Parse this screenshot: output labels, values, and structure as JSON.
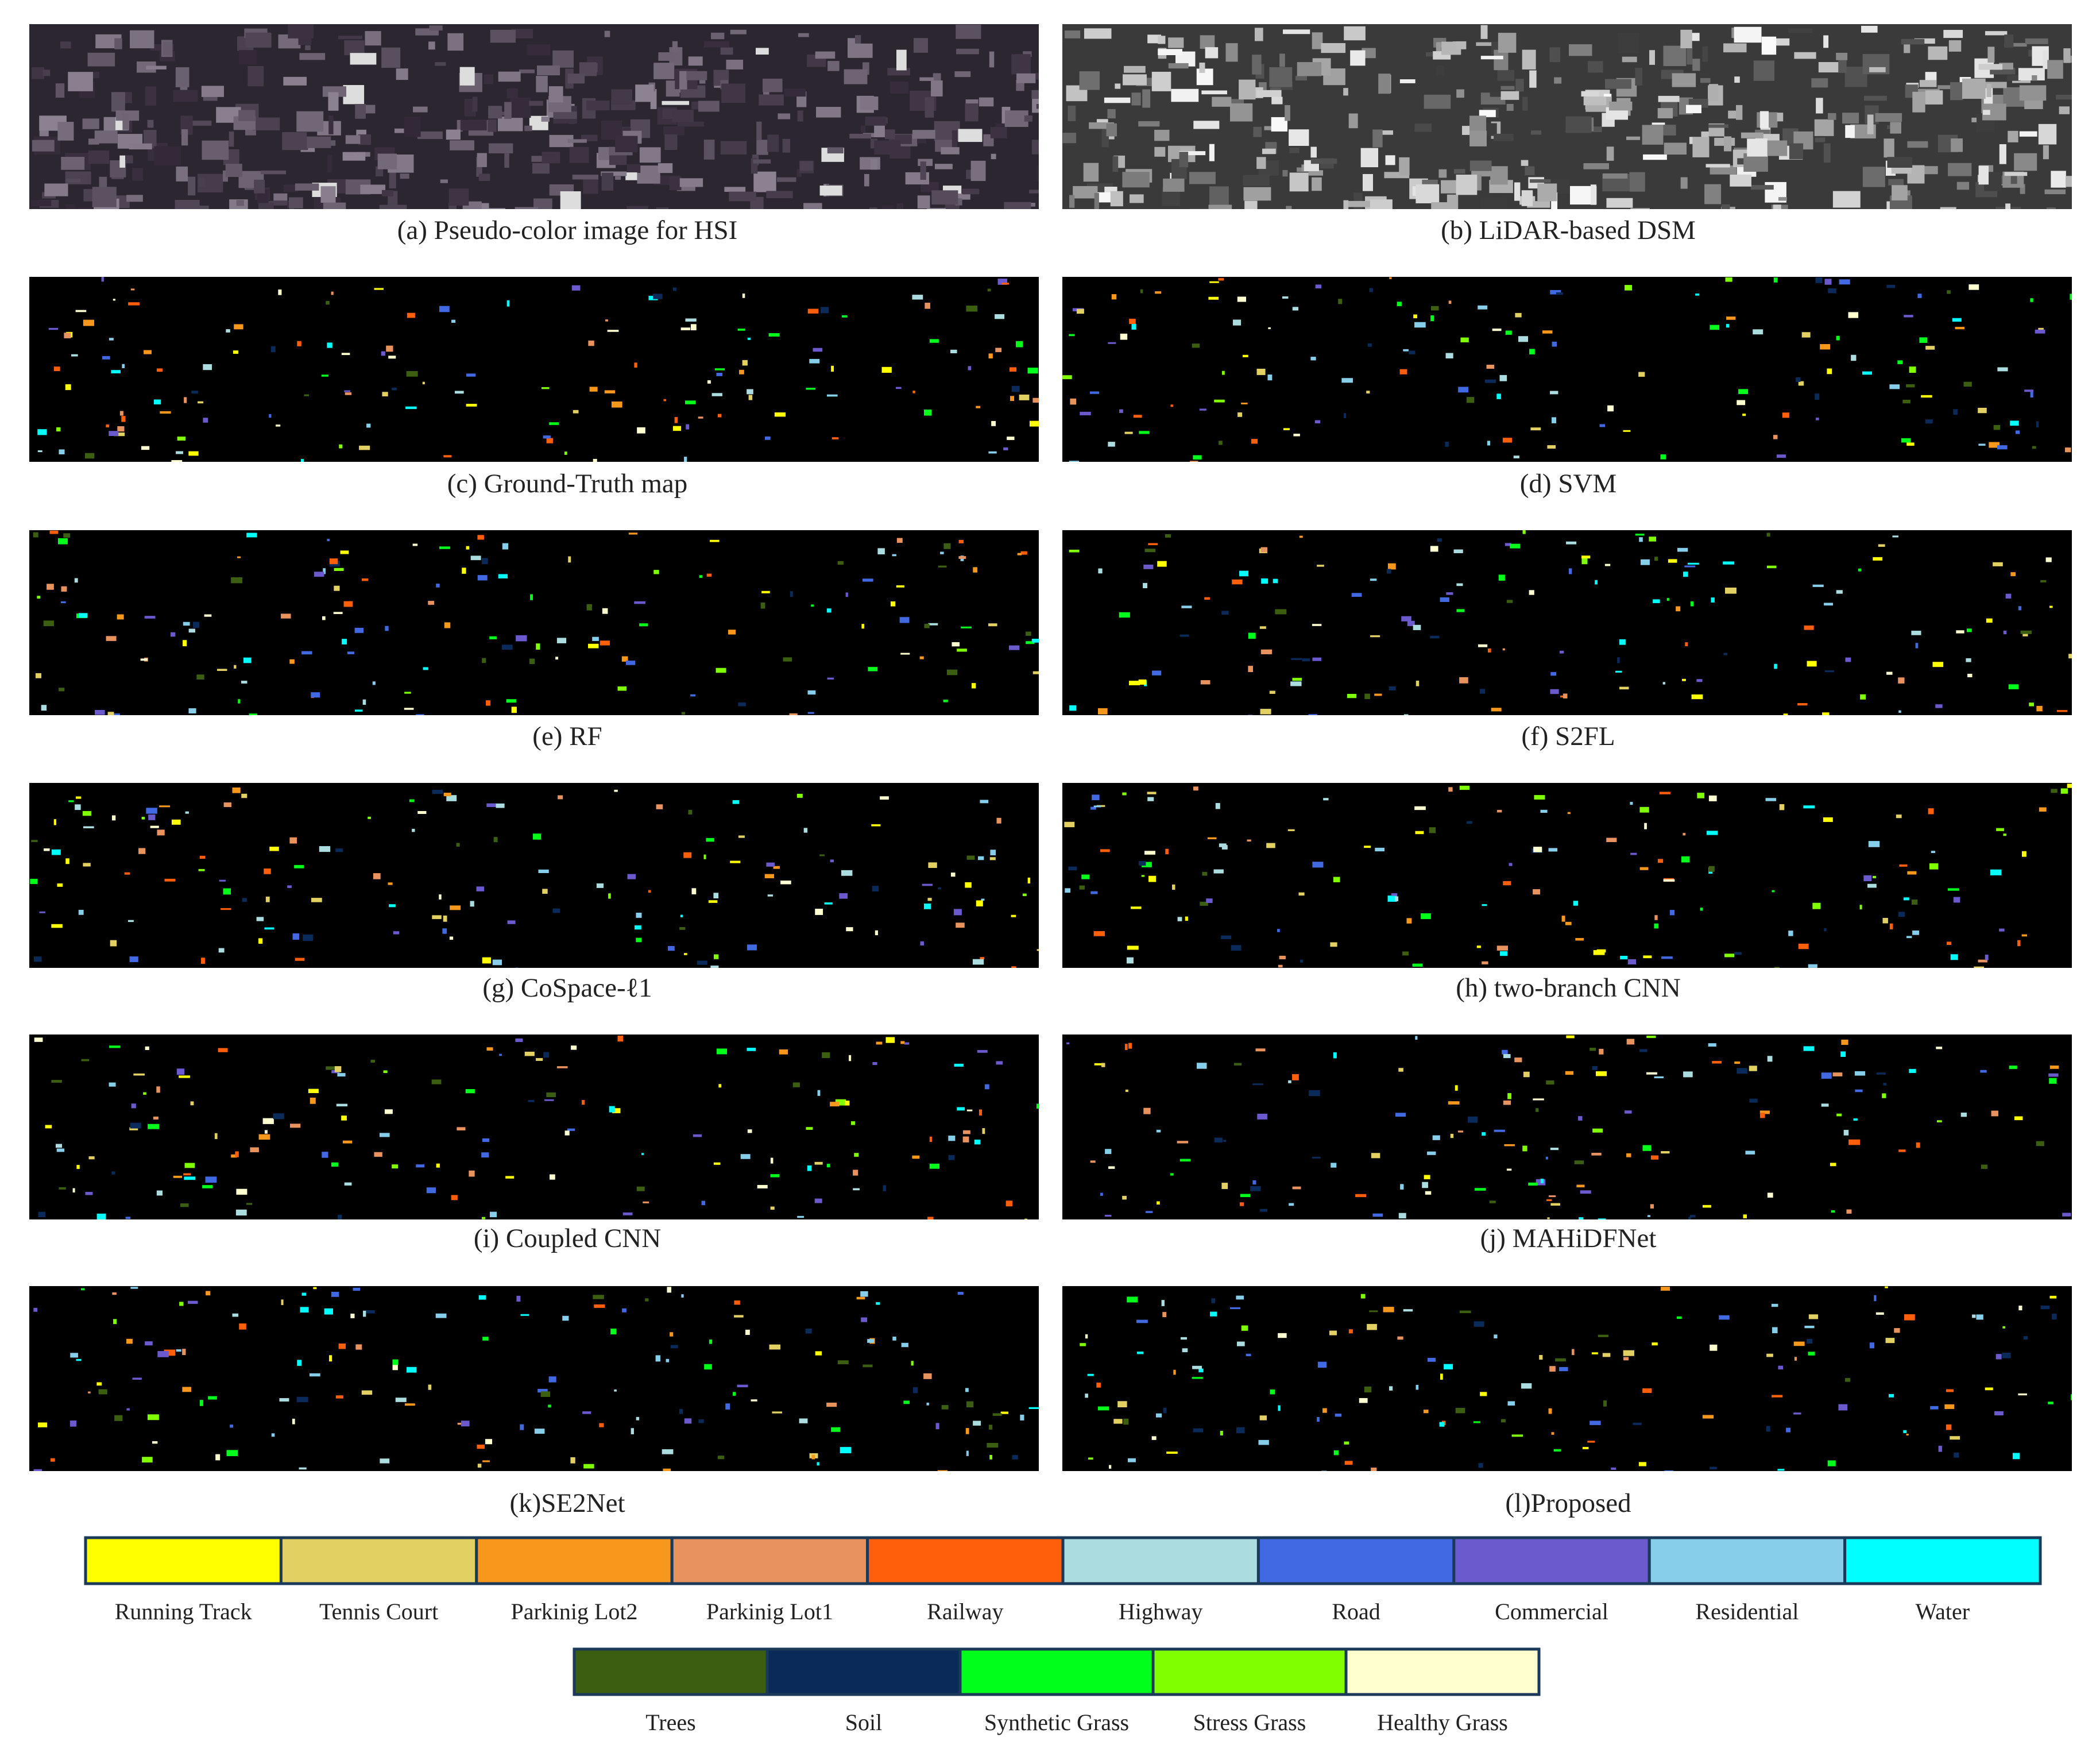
{
  "panels": [
    {
      "caption": "(a) Pseudo-color image for HSI",
      "kind": "hsi"
    },
    {
      "caption": "(b) LiDAR-based DSM",
      "kind": "dsm"
    },
    {
      "caption": "(c) Ground-Truth map",
      "kind": "map"
    },
    {
      "caption": "(d) SVM",
      "kind": "map"
    },
    {
      "caption": "(e) RF",
      "kind": "map"
    },
    {
      "caption": "(f) S2FL",
      "kind": "map"
    },
    {
      "caption": "(g) CoSpace-ℓ1",
      "kind": "map"
    },
    {
      "caption": "(h) two-branch CNN",
      "kind": "map"
    },
    {
      "caption": "(i) Coupled CNN",
      "kind": "map"
    },
    {
      "caption": "(j) MAHiDFNet",
      "kind": "map"
    },
    {
      "caption": "(k)SE2Net",
      "kind": "map"
    },
    {
      "caption": "(l)Proposed",
      "kind": "map"
    }
  ],
  "legend": {
    "rows": [
      [
        {
          "name": "Running Track",
          "color": "#ffff00"
        },
        {
          "name": "Tennis Court",
          "color": "#e2d062"
        },
        {
          "name": "Parkinig Lot2",
          "color": "#f7981d"
        },
        {
          "name": "Parkinig Lot1",
          "color": "#e8925e"
        },
        {
          "name": "Railway",
          "color": "#ff5f0a"
        },
        {
          "name": "Highway",
          "color": "#aadce0"
        },
        {
          "name": "Road",
          "color": "#4169e1"
        },
        {
          "name": "Commercial",
          "color": "#6a5acd"
        },
        {
          "name": "Residential",
          "color": "#87ceeb"
        },
        {
          "name": "Water",
          "color": "#00ffff"
        }
      ],
      [
        {
          "name": "Trees",
          "color": "#3b5e11"
        },
        {
          "name": "Soil",
          "color": "#0a2b5a"
        },
        {
          "name": "Synthetic Grass",
          "color": "#00ff1a"
        },
        {
          "name": "Stress Grass",
          "color": "#80ff00"
        },
        {
          "name": "Healthy Grass",
          "color": "#ffffd0"
        }
      ]
    ]
  }
}
